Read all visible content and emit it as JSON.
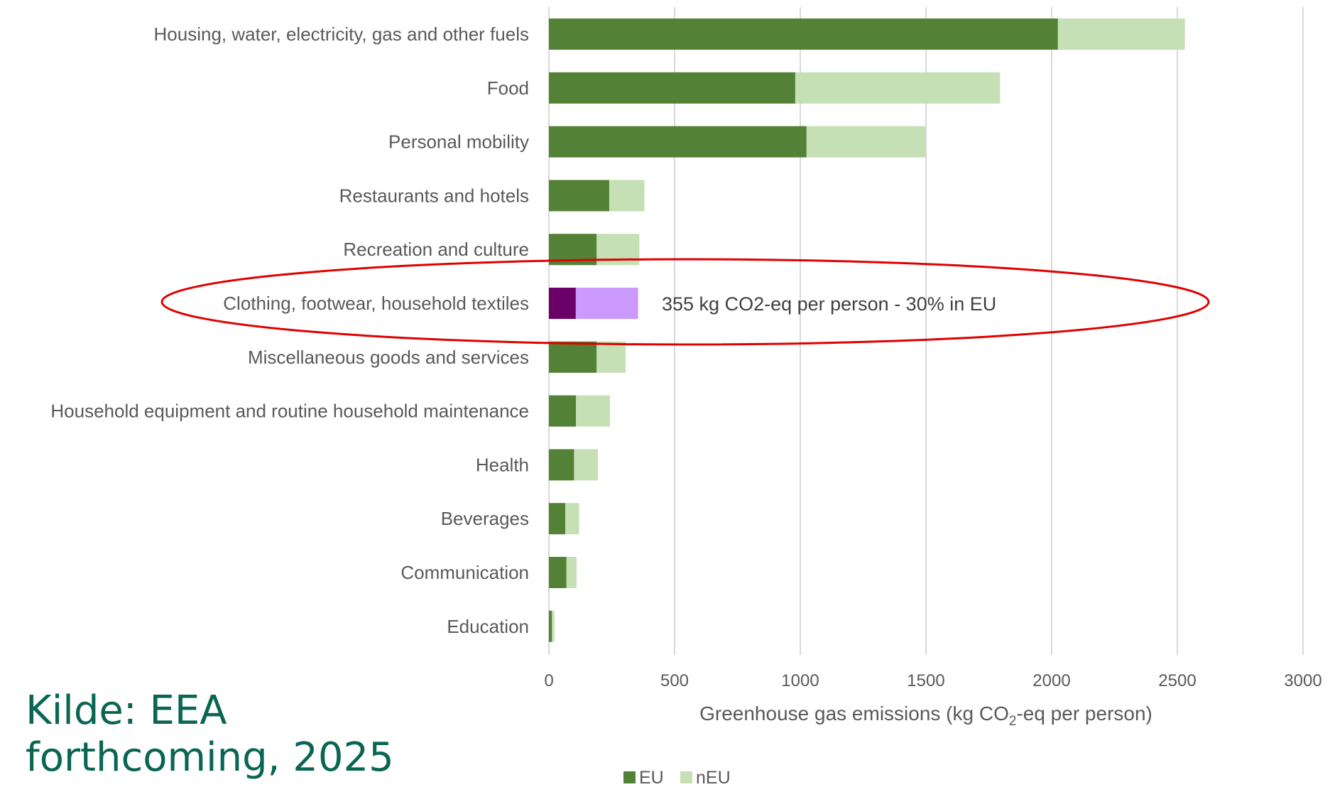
{
  "source": {
    "line1": "Kilde: EEA",
    "line2": "forthcoming, 2025"
  },
  "chart_data": {
    "type": "bar",
    "orientation": "horizontal",
    "stacked": true,
    "categories": [
      "Housing, water, electricity, gas and other fuels",
      "Food",
      "Personal mobility",
      "Restaurants and hotels",
      "Recreation and culture",
      "Clothing, footwear, household textiles",
      "Miscellaneous goods and services",
      "Household equipment and routine household maintenance",
      "Health",
      "Beverages",
      "Communication",
      "Education"
    ],
    "series": [
      {
        "name": "EU",
        "values": [
          2025,
          980,
          1025,
          240,
          190,
          107,
          190,
          108,
          100,
          65,
          70,
          12
        ]
      },
      {
        "name": "nEU",
        "values": [
          505,
          815,
          475,
          140,
          170,
          248,
          115,
          135,
          95,
          55,
          40,
          10
        ]
      }
    ],
    "xlabel_pre": "Greenhouse gas emissions (kg CO",
    "xlabel_sub": "2",
    "xlabel_post": "-eq per person)",
    "ylabel": "",
    "xlim": [
      0,
      3000
    ],
    "xticks": [
      0,
      500,
      1000,
      1500,
      2000,
      2500,
      3000
    ],
    "grid": "vertical",
    "legend_position": "bottom",
    "colors": {
      "EU": "#538135",
      "nEU": "#c5e0b4",
      "highlight_EU": "#6b0068",
      "highlight_nEU": "#cc99ff",
      "ellipse": "#e00000",
      "grid": "#d9d9d9"
    },
    "highlight": {
      "category_index": 5,
      "annotation": "355 kg CO2-eq per person - 30% in EU"
    }
  }
}
